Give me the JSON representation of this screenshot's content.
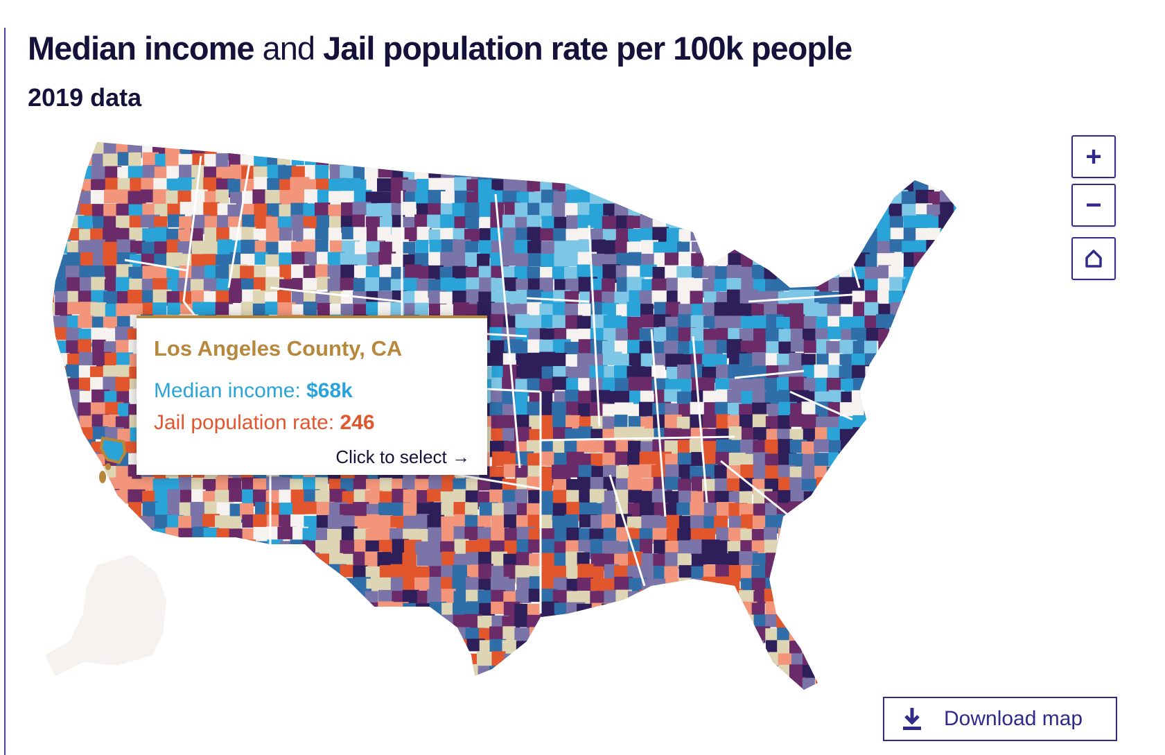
{
  "header": {
    "title_part1": "Median income",
    "title_join": "and",
    "title_part2": "Jail population rate per 100k people",
    "subtitle": "2019 data"
  },
  "controls": {
    "zoom_in_label": "+",
    "zoom_out_label": "−",
    "home_icon": "home-icon",
    "download_label": "Download map",
    "download_icon": "download-icon"
  },
  "tooltip": {
    "county": "Los Angeles County, CA",
    "income_label": "Median income: ",
    "income_value": "$68k",
    "jail_label": "Jail population rate: ",
    "jail_value": "246",
    "cta": "Click to select →"
  },
  "legend_colors": {
    "high_income_low_jail": "#2aa3d8",
    "high_income_mid_jail": "#2f6ea8",
    "light_income": "#7dc6e6",
    "mid_mix": "#7a74a8",
    "purple_high": "#6b2a68",
    "dark_purple": "#2e1f5a",
    "high_jail_low_income": "#e2562e",
    "salmon": "#f2957a",
    "tan": "#ddd5b4",
    "no_data": "#f5f2ef",
    "selected_outline": "#b7883c",
    "state_border": "#ffffff"
  }
}
